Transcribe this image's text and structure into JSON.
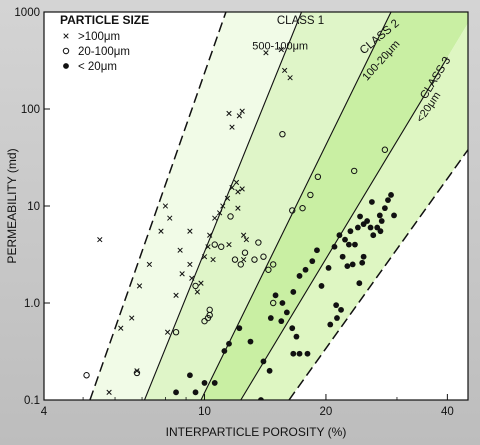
{
  "chart_data": {
    "type": "scatter",
    "xscale": "log",
    "yscale": "log",
    "xlim": [
      4,
      45
    ],
    "ylim": [
      0.1,
      1000
    ],
    "xlabel": "INTERPARTICLE POROSITY (%)",
    "ylabel": "PERMEABILITY (md)",
    "xticks": [
      4,
      10,
      20,
      40
    ],
    "xtick_labels": [
      "4",
      "10",
      "20",
      "40"
    ],
    "yticks": [
      0.1,
      1,
      10,
      100,
      1000
    ],
    "ytick_labels": [
      "0.1",
      "1.0",
      "10",
      "100",
      "1000"
    ],
    "grid": false,
    "legend_position": "top-left",
    "legend_title": "PARTICLE SIZE",
    "legend": [
      {
        "marker": "x",
        "label": ">100μm"
      },
      {
        "marker": "open-circle",
        "label": "20-100μm"
      },
      {
        "marker": "filled-circle",
        "label": "< 20μm"
      }
    ],
    "class_boundaries": [
      {
        "style": "dashed",
        "x": [
          5.2,
          11.3
        ],
        "y": [
          0.1,
          1000
        ]
      },
      {
        "style": "solid",
        "x": [
          7.1,
          17.4
        ],
        "y": [
          0.1,
          1000
        ]
      },
      {
        "style": "solid",
        "x": [
          9.8,
          29
        ],
        "y": [
          0.1,
          1000
        ]
      },
      {
        "style": "solid",
        "x": [
          12.3,
          40
        ],
        "y": [
          0.1,
          340
        ]
      },
      {
        "style": "dashed",
        "x": [
          16.2,
          45
        ],
        "y": [
          0.1,
          38
        ]
      }
    ],
    "class_labels": [
      {
        "text": "CLASS 1",
        "x": 17.3,
        "y": 750
      },
      {
        "text": "500-100μm",
        "x": 15.4,
        "y": 410
      },
      {
        "text": "CLASS 2",
        "x": 27.5,
        "y": 520
      },
      {
        "text": "100-20μm",
        "x": 27.8,
        "y": 300
      },
      {
        "text": "CLASS 3",
        "x": 38,
        "y": 200
      },
      {
        "text": "<20μm",
        "x": 36.5,
        "y": 100
      }
    ],
    "series": [
      {
        "marker": "x",
        "points": [
          [
            5.5,
            4.5
          ],
          [
            6.2,
            0.55
          ],
          [
            6.6,
            0.7
          ],
          [
            6.9,
            1.5
          ],
          [
            7.3,
            2.5
          ],
          [
            7.8,
            5.5
          ],
          [
            8.0,
            10
          ],
          [
            8.2,
            7.5
          ],
          [
            8.1,
            0.5
          ],
          [
            8.5,
            1.2
          ],
          [
            8.7,
            3.5
          ],
          [
            8.8,
            2.0
          ],
          [
            9.2,
            5.5
          ],
          [
            9.2,
            2.5
          ],
          [
            9.3,
            1.8
          ],
          [
            9.6,
            1.3
          ],
          [
            9.8,
            1.6
          ],
          [
            10.0,
            3.0
          ],
          [
            10.2,
            3.8
          ],
          [
            10.3,
            5.0
          ],
          [
            10.5,
            2.8
          ],
          [
            10.6,
            7.5
          ],
          [
            10.9,
            8.5
          ],
          [
            11.1,
            10
          ],
          [
            11.4,
            12
          ],
          [
            11.5,
            4.0
          ],
          [
            11.7,
            15.5
          ],
          [
            12.0,
            17.5
          ],
          [
            12.1,
            14
          ],
          [
            12.4,
            15
          ],
          [
            12.1,
            9.5
          ],
          [
            12.5,
            5.0
          ],
          [
            12.7,
            4.5
          ],
          [
            12.5,
            2.8
          ],
          [
            11.5,
            90
          ],
          [
            12.2,
            85
          ],
          [
            12.4,
            95
          ],
          [
            11.7,
            65
          ],
          [
            14.2,
            380
          ],
          [
            15.5,
            410
          ],
          [
            15.8,
            250
          ],
          [
            16.3,
            210
          ],
          [
            6.8,
            0.2
          ],
          [
            5.8,
            0.12
          ]
        ]
      },
      {
        "marker": "open-circle",
        "points": [
          [
            5.1,
            0.18
          ],
          [
            6.8,
            0.19
          ],
          [
            8.5,
            0.5
          ],
          [
            9.5,
            1.5
          ],
          [
            10.0,
            0.65
          ],
          [
            10.2,
            0.7
          ],
          [
            10.3,
            0.75
          ],
          [
            10.3,
            0.85
          ],
          [
            10.6,
            4.0
          ],
          [
            11.0,
            3.8
          ],
          [
            11.6,
            7.8
          ],
          [
            11.9,
            2.8
          ],
          [
            12.3,
            2.5
          ],
          [
            12.6,
            3.3
          ],
          [
            13.3,
            2.8
          ],
          [
            13.6,
            4.2
          ],
          [
            14.0,
            3.0
          ],
          [
            14.4,
            2.2
          ],
          [
            14.8,
            1.0
          ],
          [
            14.8,
            2.5
          ],
          [
            15.6,
            55
          ],
          [
            16.5,
            9.0
          ],
          [
            17.5,
            9.5
          ],
          [
            18.3,
            13
          ],
          [
            19.1,
            20
          ],
          [
            23.5,
            23
          ],
          [
            28,
            38
          ]
        ]
      },
      {
        "marker": "filled-circle",
        "points": [
          [
            8.5,
            0.12
          ],
          [
            9.2,
            0.18
          ],
          [
            9.5,
            0.12
          ],
          [
            10.0,
            0.15
          ],
          [
            10.6,
            0.15
          ],
          [
            11.2,
            0.32
          ],
          [
            11.5,
            0.38
          ],
          [
            12.2,
            0.55
          ],
          [
            13.0,
            0.4
          ],
          [
            14.6,
            0.7
          ],
          [
            15.5,
            0.65
          ],
          [
            16.0,
            0.8
          ],
          [
            16.5,
            0.55
          ],
          [
            16.9,
            0.45
          ],
          [
            14.0,
            0.25
          ],
          [
            14.5,
            0.2
          ],
          [
            15.0,
            1.2
          ],
          [
            15.6,
            1.0
          ],
          [
            16.6,
            1.3
          ],
          [
            17.2,
            1.9
          ],
          [
            17.8,
            2.2
          ],
          [
            18.5,
            2.7
          ],
          [
            19.0,
            3.5
          ],
          [
            19.5,
            1.5
          ],
          [
            20.3,
            2.3
          ],
          [
            21.0,
            3.8
          ],
          [
            21.6,
            5.0
          ],
          [
            22.0,
            3.0
          ],
          [
            22.3,
            4.5
          ],
          [
            22.8,
            4.0
          ],
          [
            23.0,
            5.5
          ],
          [
            23.3,
            2.5
          ],
          [
            23.6,
            4.0
          ],
          [
            24.0,
            6.0
          ],
          [
            24.3,
            7.8
          ],
          [
            24.8,
            6.5
          ],
          [
            25.3,
            7.0
          ],
          [
            25.8,
            6.0
          ],
          [
            26.2,
            5.0
          ],
          [
            26.8,
            6.0
          ],
          [
            27.3,
            5.5
          ],
          [
            27.5,
            7.0
          ],
          [
            28.0,
            9.5
          ],
          [
            28.5,
            11.5
          ],
          [
            29.0,
            13
          ],
          [
            29.5,
            8.0
          ],
          [
            26.0,
            11
          ],
          [
            27.2,
            8.0
          ],
          [
            22.6,
            2.4
          ],
          [
            21.8,
            0.85
          ],
          [
            21.3,
            0.7
          ],
          [
            20.5,
            0.6
          ],
          [
            21.2,
            0.95
          ],
          [
            24.2,
            1.6
          ],
          [
            24.6,
            2.6
          ],
          [
            24.8,
            3.0
          ],
          [
            18.0,
            0.3
          ],
          [
            17.2,
            0.3
          ],
          [
            16.6,
            0.3
          ],
          [
            13.8,
            0.1
          ]
        ]
      }
    ]
  }
}
